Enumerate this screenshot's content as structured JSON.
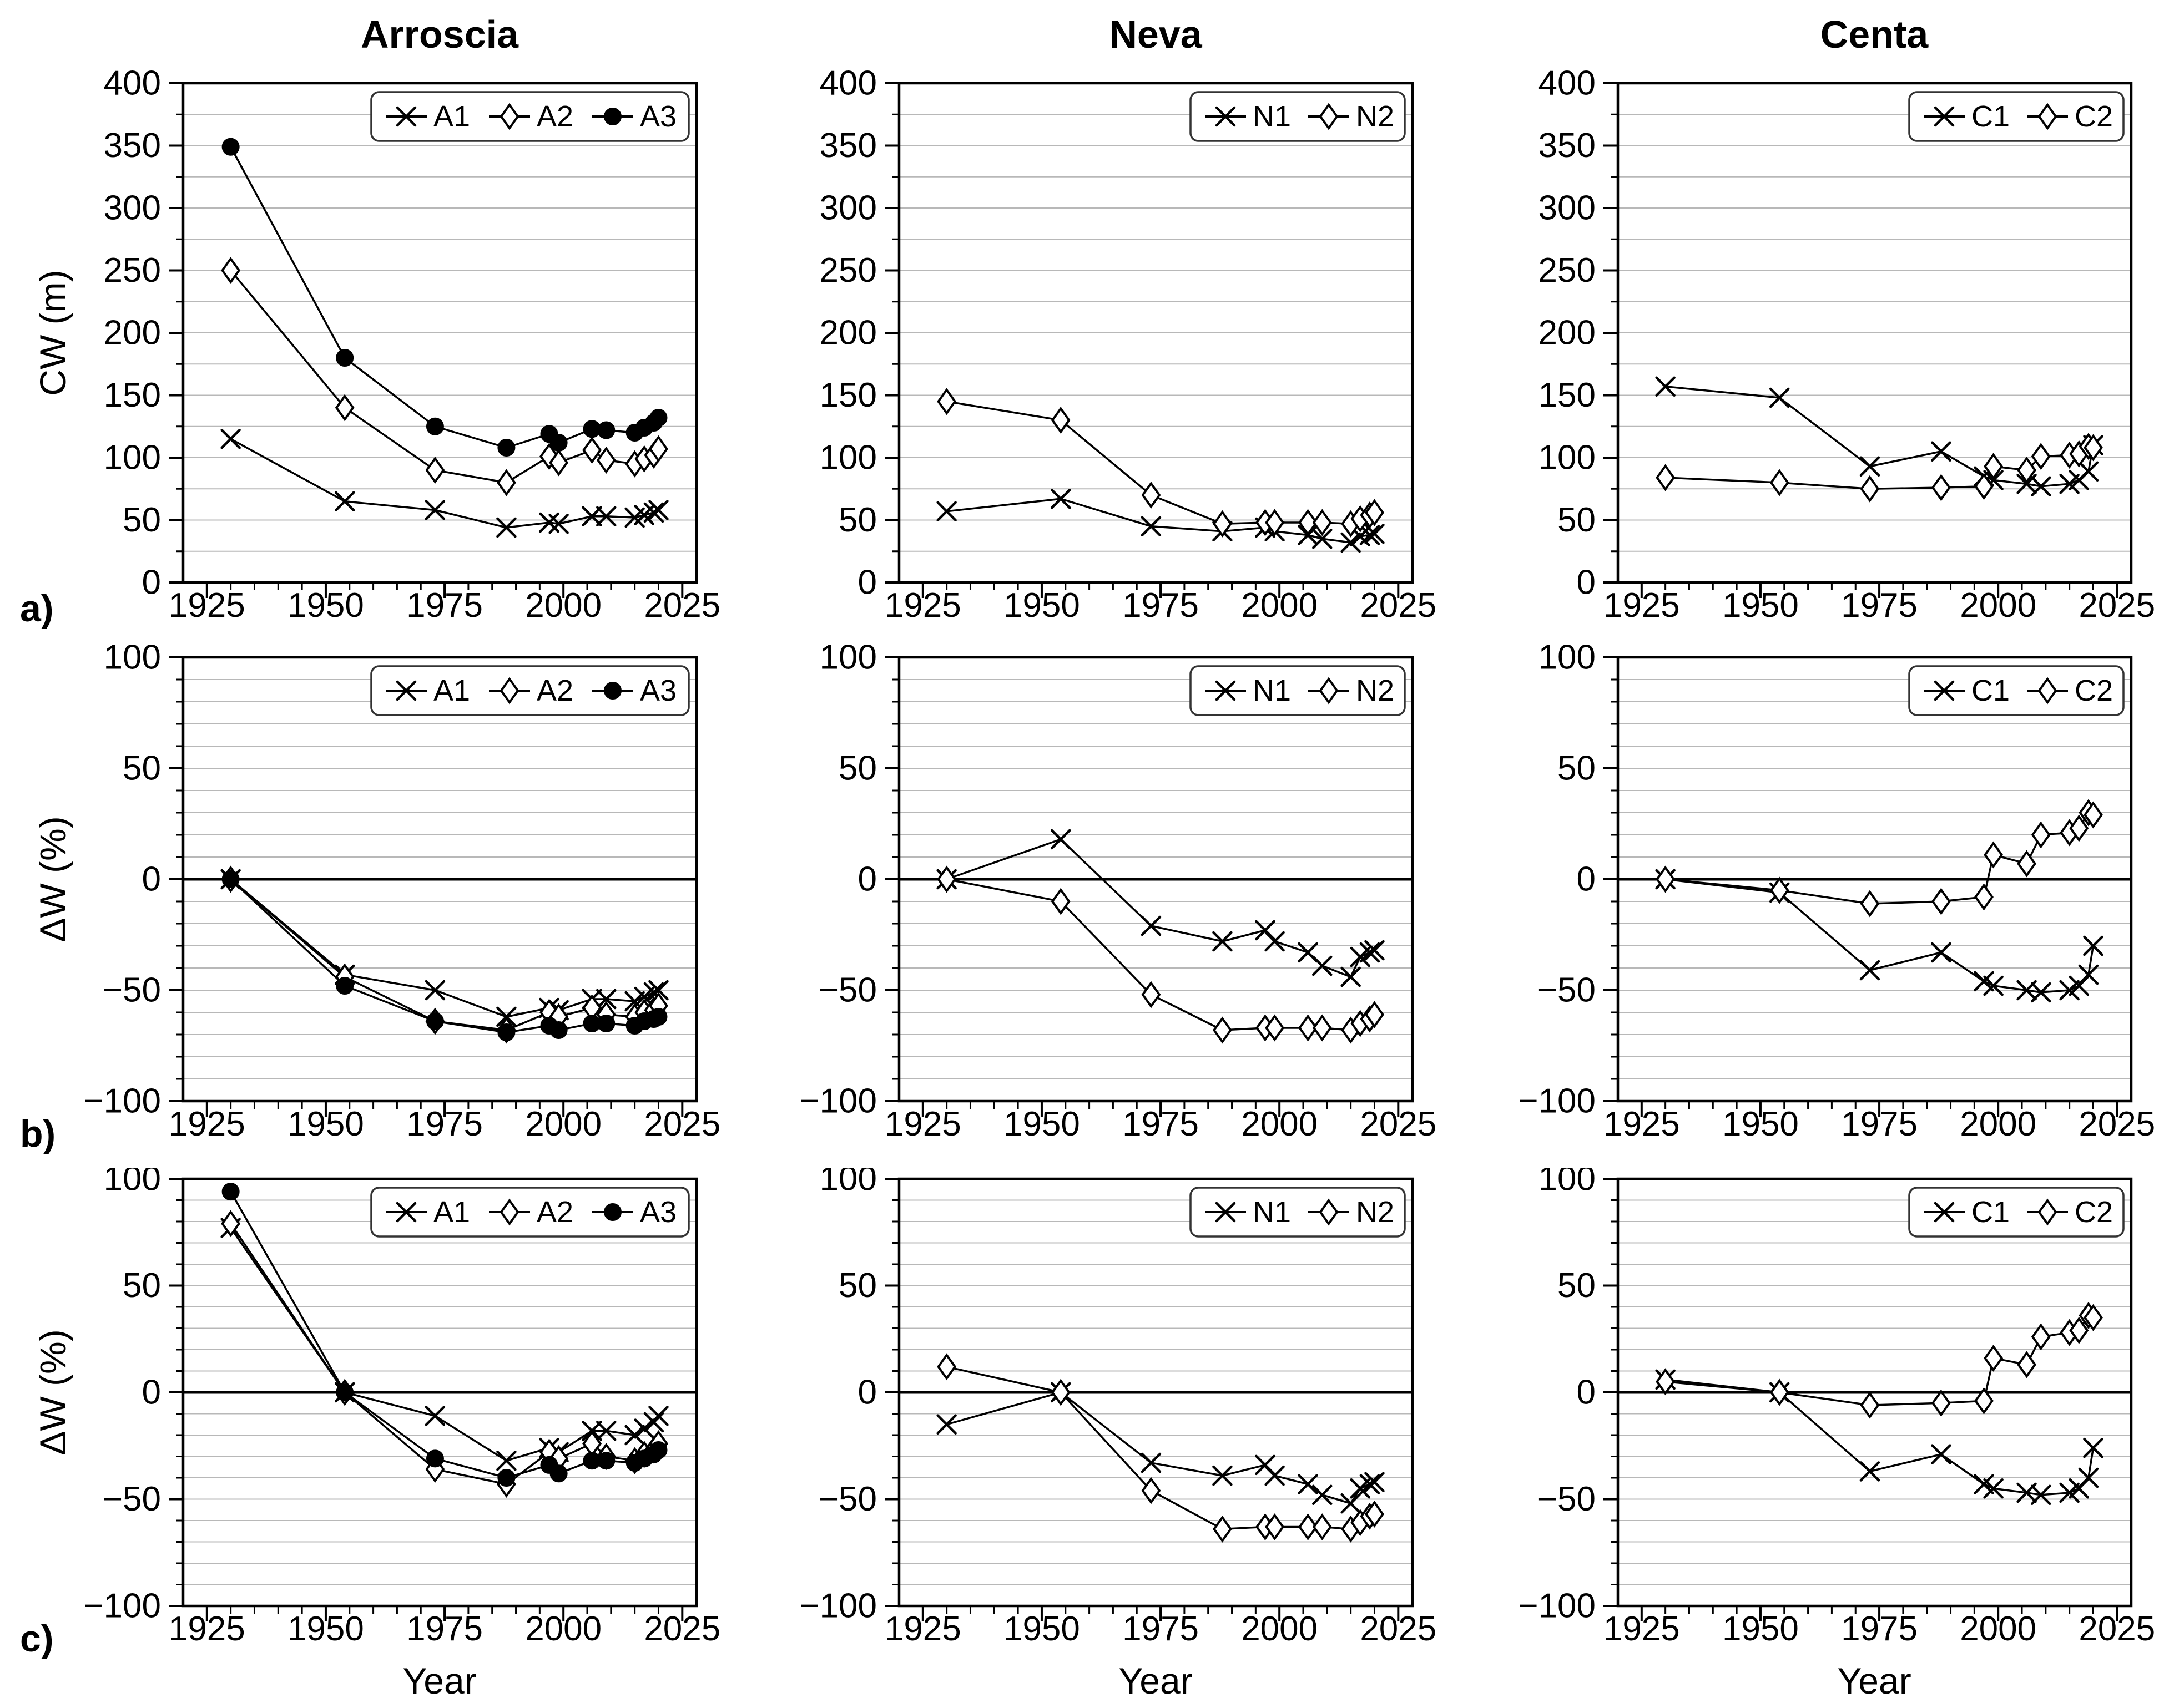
{
  "figure": {
    "columns": [
      {
        "title": "Arroscia"
      },
      {
        "title": "Neva"
      },
      {
        "title": "Centa"
      }
    ],
    "rows": [
      {
        "panel": "a)",
        "ylabel": "CW (m)"
      },
      {
        "panel": "b)",
        "ylabel": "ΔW (%)"
      },
      {
        "panel": "c)",
        "ylabel": "ΔW (%)"
      }
    ],
    "xlabel": "Year",
    "colors": {
      "line": "#000000",
      "marker_fill": "#000000",
      "marker_open_fill": "#ffffff",
      "grid": "#b8b8b8",
      "zero_line": "#000000",
      "frame": "#000000",
      "legend_border": "#333333",
      "background": "#ffffff"
    }
  },
  "chart_data": [
    {
      "type": "line",
      "row": "a",
      "column": "Arroscia",
      "ylabel": "CW (m)",
      "x": [
        1930,
        1954,
        1973,
        1988,
        1997,
        1999,
        2006,
        2009,
        2015,
        2017,
        2019,
        2020
      ],
      "xlim": [
        1920,
        2028
      ],
      "xticks": [
        1925,
        1950,
        1975,
        2000,
        2025
      ],
      "xtick_minor_step": 5,
      "ylim": [
        0,
        400
      ],
      "yticks": [
        0,
        50,
        100,
        150,
        200,
        250,
        300,
        350,
        400
      ],
      "ytick_minor_step": 25,
      "zero_line": false,
      "grid": true,
      "legend_position": "top-right",
      "series": [
        {
          "name": "A1",
          "marker": "cross",
          "values": [
            115,
            65,
            58,
            44,
            48,
            47,
            53,
            53,
            52,
            54,
            56,
            58
          ]
        },
        {
          "name": "A2",
          "marker": "diamond-open",
          "values": [
            250,
            140,
            90,
            80,
            101,
            96,
            106,
            98,
            95,
            99,
            102,
            107
          ]
        },
        {
          "name": "A3",
          "marker": "circle-filled",
          "values": [
            349,
            180,
            125,
            108,
            119,
            112,
            123,
            122,
            120,
            124,
            128,
            132
          ]
        }
      ]
    },
    {
      "type": "line",
      "row": "a",
      "column": "Neva",
      "ylabel": "CW (m)",
      "x": [
        1930,
        1954,
        1973,
        1988,
        1997,
        1999,
        2006,
        2009,
        2015,
        2017,
        2019,
        2020
      ],
      "xlim": [
        1920,
        2028
      ],
      "xticks": [
        1925,
        1950,
        1975,
        2000,
        2025
      ],
      "xtick_minor_step": 5,
      "ylim": [
        0,
        400
      ],
      "yticks": [
        0,
        50,
        100,
        150,
        200,
        250,
        300,
        350,
        400
      ],
      "ytick_minor_step": 25,
      "zero_line": false,
      "grid": true,
      "legend_position": "top-right",
      "series": [
        {
          "name": "N1",
          "marker": "cross",
          "values": [
            57,
            67,
            45,
            41,
            44,
            41,
            38,
            35,
            32,
            37,
            38,
            39
          ]
        },
        {
          "name": "N2",
          "marker": "diamond-open",
          "values": [
            145,
            130,
            70,
            47,
            48,
            48,
            48,
            48,
            47,
            51,
            54,
            56
          ]
        }
      ]
    },
    {
      "type": "line",
      "row": "a",
      "column": "Centa",
      "ylabel": "CW (m)",
      "x": [
        1930,
        1954,
        1973,
        1988,
        1997,
        1999,
        2006,
        2009,
        2015,
        2017,
        2019,
        2020
      ],
      "xlim": [
        1920,
        2028
      ],
      "xticks": [
        1925,
        1950,
        1975,
        2000,
        2025
      ],
      "xtick_minor_step": 5,
      "ylim": [
        0,
        400
      ],
      "yticks": [
        0,
        50,
        100,
        150,
        200,
        250,
        300,
        350,
        400
      ],
      "ytick_minor_step": 25,
      "zero_line": false,
      "grid": true,
      "legend_position": "top-right",
      "series": [
        {
          "name": "C1",
          "marker": "cross",
          "values": [
            157,
            148,
            93,
            105,
            85,
            82,
            79,
            77,
            79,
            82,
            89,
            110
          ]
        },
        {
          "name": "C2",
          "marker": "diamond-open",
          "values": [
            84,
            80,
            75,
            76,
            77,
            93,
            90,
            101,
            102,
            103,
            109,
            108
          ]
        }
      ]
    },
    {
      "type": "line",
      "row": "b",
      "column": "Arroscia",
      "ylabel": "ΔW (%)",
      "x": [
        1930,
        1954,
        1973,
        1988,
        1997,
        1999,
        2006,
        2009,
        2015,
        2017,
        2019,
        2020
      ],
      "xlim": [
        1920,
        2028
      ],
      "xticks": [
        1925,
        1950,
        1975,
        2000,
        2025
      ],
      "xtick_minor_step": 5,
      "ylim": [
        -100,
        100
      ],
      "yticks": [
        -100,
        -50,
        0,
        50,
        100
      ],
      "ytick_minor_step": 10,
      "zero_line": true,
      "grid": true,
      "legend_position": "top-right",
      "series": [
        {
          "name": "A1",
          "marker": "cross",
          "values": [
            0,
            -43,
            -50,
            -62,
            -58,
            -59,
            -54,
            -54,
            -55,
            -53,
            -51,
            -50
          ]
        },
        {
          "name": "A2",
          "marker": "diamond-open",
          "values": [
            0,
            -44,
            -64,
            -68,
            -60,
            -62,
            -58,
            -61,
            -62,
            -60,
            -59,
            -57
          ]
        },
        {
          "name": "A3",
          "marker": "circle-filled",
          "values": [
            0,
            -48,
            -64,
            -69,
            -66,
            -68,
            -65,
            -65,
            -66,
            -64,
            -63,
            -62
          ]
        }
      ]
    },
    {
      "type": "line",
      "row": "b",
      "column": "Neva",
      "ylabel": "ΔW (%)",
      "x": [
        1930,
        1954,
        1973,
        1988,
        1997,
        1999,
        2006,
        2009,
        2015,
        2017,
        2019,
        2020
      ],
      "xlim": [
        1920,
        2028
      ],
      "xticks": [
        1925,
        1950,
        1975,
        2000,
        2025
      ],
      "xtick_minor_step": 5,
      "ylim": [
        -100,
        100
      ],
      "yticks": [
        -100,
        -50,
        0,
        50,
        100
      ],
      "ytick_minor_step": 10,
      "zero_line": true,
      "grid": true,
      "legend_position": "top-right",
      "series": [
        {
          "name": "N1",
          "marker": "cross",
          "values": [
            0,
            18,
            -21,
            -28,
            -23,
            -28,
            -33,
            -39,
            -44,
            -35,
            -33,
            -32
          ]
        },
        {
          "name": "N2",
          "marker": "diamond-open",
          "values": [
            0,
            -10,
            -52,
            -68,
            -67,
            -67,
            -67,
            -67,
            -68,
            -65,
            -63,
            -61
          ]
        }
      ]
    },
    {
      "type": "line",
      "row": "b",
      "column": "Centa",
      "ylabel": "ΔW (%)",
      "x": [
        1930,
        1954,
        1973,
        1988,
        1997,
        1999,
        2006,
        2009,
        2015,
        2017,
        2019,
        2020
      ],
      "xlim": [
        1920,
        2028
      ],
      "xticks": [
        1925,
        1950,
        1975,
        2000,
        2025
      ],
      "xtick_minor_step": 5,
      "ylim": [
        -100,
        100
      ],
      "yticks": [
        -100,
        -50,
        0,
        50,
        100
      ],
      "ytick_minor_step": 10,
      "zero_line": true,
      "grid": true,
      "legend_position": "top-right",
      "series": [
        {
          "name": "C1",
          "marker": "cross",
          "values": [
            0,
            -6,
            -41,
            -33,
            -46,
            -48,
            -50,
            -51,
            -50,
            -48,
            -43,
            -30
          ]
        },
        {
          "name": "C2",
          "marker": "diamond-open",
          "values": [
            0,
            -5,
            -11,
            -10,
            -8,
            11,
            7,
            20,
            21,
            23,
            30,
            29
          ]
        }
      ]
    },
    {
      "type": "line",
      "row": "c",
      "column": "Arroscia",
      "ylabel": "ΔW (%)",
      "x": [
        1930,
        1954,
        1973,
        1988,
        1997,
        1999,
        2006,
        2009,
        2015,
        2017,
        2019,
        2020
      ],
      "xlim": [
        1920,
        2028
      ],
      "xticks": [
        1925,
        1950,
        1975,
        2000,
        2025
      ],
      "xtick_minor_step": 5,
      "ylim": [
        -100,
        100
      ],
      "yticks": [
        -100,
        -50,
        0,
        50,
        100
      ],
      "ytick_minor_step": 10,
      "zero_line": true,
      "grid": true,
      "legend_position": "top-right",
      "series": [
        {
          "name": "A1",
          "marker": "cross",
          "values": [
            77,
            0,
            -11,
            -32,
            -26,
            -28,
            -18,
            -18,
            -20,
            -17,
            -14,
            -11
          ]
        },
        {
          "name": "A2",
          "marker": "diamond-open",
          "values": [
            79,
            0,
            -36,
            -43,
            -28,
            -31,
            -24,
            -30,
            -32,
            -29,
            -27,
            -24
          ]
        },
        {
          "name": "A3",
          "marker": "circle-filled",
          "values": [
            94,
            0,
            -31,
            -40,
            -34,
            -38,
            -32,
            -32,
            -33,
            -31,
            -29,
            -27
          ]
        }
      ]
    },
    {
      "type": "line",
      "row": "c",
      "column": "Neva",
      "ylabel": "ΔW (%)",
      "x": [
        1930,
        1954,
        1973,
        1988,
        1997,
        1999,
        2006,
        2009,
        2015,
        2017,
        2019,
        2020
      ],
      "xlim": [
        1920,
        2028
      ],
      "xticks": [
        1925,
        1950,
        1975,
        2000,
        2025
      ],
      "xtick_minor_step": 5,
      "ylim": [
        -100,
        100
      ],
      "yticks": [
        -100,
        -50,
        0,
        50,
        100
      ],
      "ytick_minor_step": 10,
      "zero_line": true,
      "grid": true,
      "legend_position": "top-right",
      "series": [
        {
          "name": "N1",
          "marker": "cross",
          "values": [
            -15,
            0,
            -33,
            -39,
            -34,
            -39,
            -43,
            -48,
            -52,
            -45,
            -43,
            -42
          ]
        },
        {
          "name": "N2",
          "marker": "diamond-open",
          "values": [
            12,
            0,
            -46,
            -64,
            -63,
            -63,
            -63,
            -63,
            -64,
            -61,
            -58,
            -57
          ]
        }
      ]
    },
    {
      "type": "line",
      "row": "c",
      "column": "Centa",
      "ylabel": "ΔW (%)",
      "x": [
        1930,
        1954,
        1973,
        1988,
        1997,
        1999,
        2006,
        2009,
        2015,
        2017,
        2019,
        2020
      ],
      "xlim": [
        1920,
        2028
      ],
      "xticks": [
        1925,
        1950,
        1975,
        2000,
        2025
      ],
      "xtick_minor_step": 5,
      "ylim": [
        -100,
        100
      ],
      "yticks": [
        -100,
        -50,
        0,
        50,
        100
      ],
      "ytick_minor_step": 10,
      "zero_line": true,
      "grid": true,
      "legend_position": "top-right",
      "series": [
        {
          "name": "C1",
          "marker": "cross",
          "values": [
            6,
            0,
            -37,
            -29,
            -43,
            -45,
            -47,
            -48,
            -47,
            -45,
            -40,
            -26
          ]
        },
        {
          "name": "C2",
          "marker": "diamond-open",
          "values": [
            5,
            0,
            -6,
            -5,
            -4,
            16,
            13,
            26,
            28,
            29,
            36,
            35
          ]
        }
      ]
    }
  ]
}
